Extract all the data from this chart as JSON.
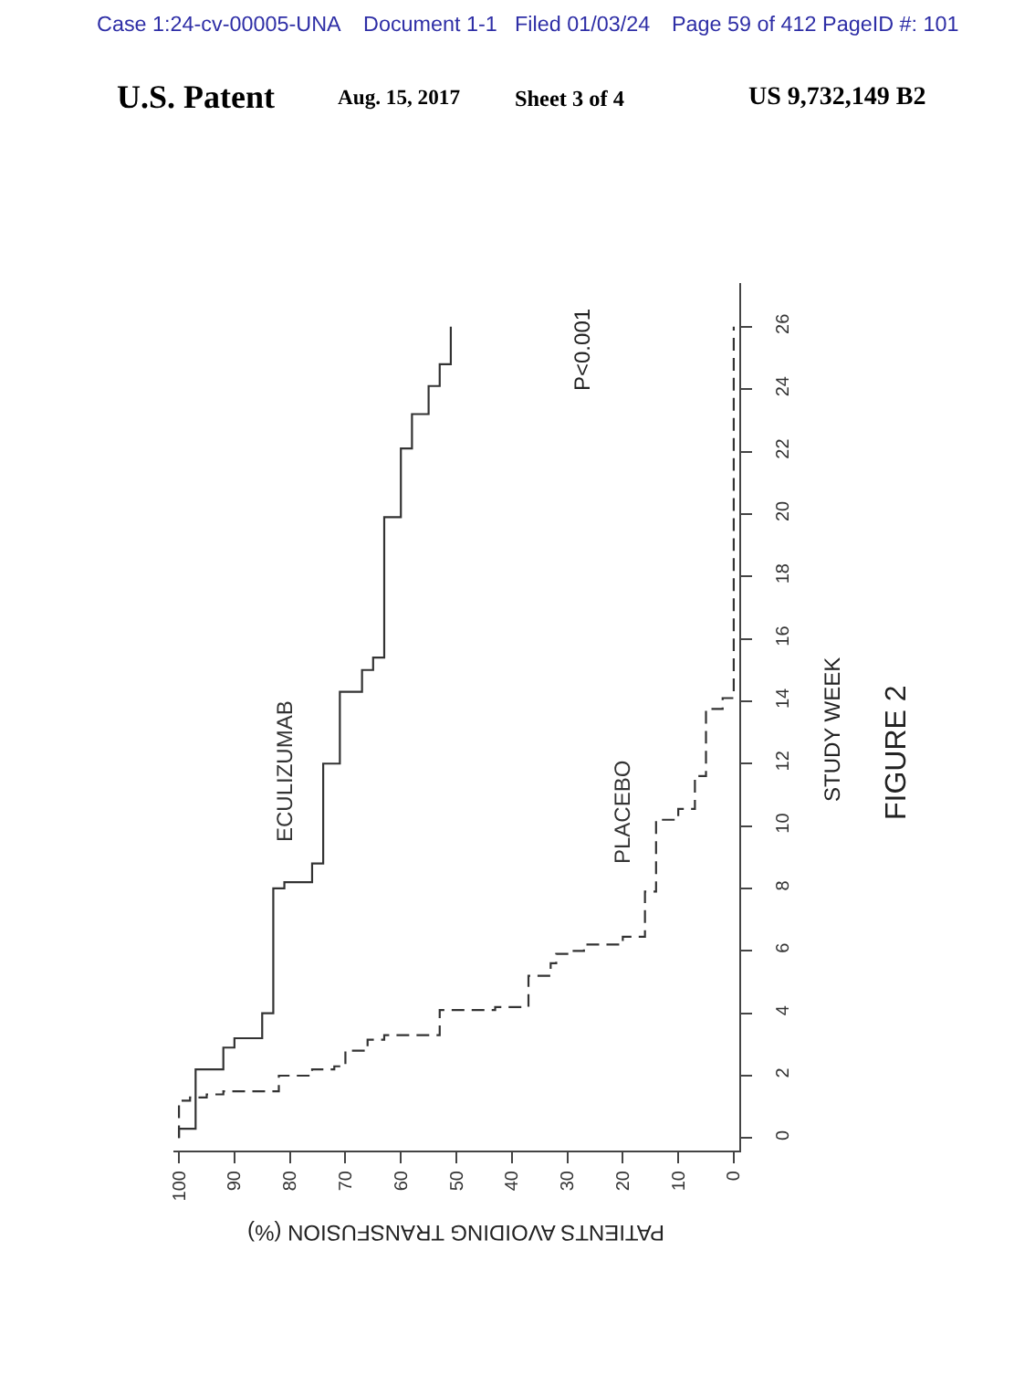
{
  "chart_data": {
    "type": "line",
    "xlabel": "PATIENTS AVOIDING TRANSFUSION (%)",
    "ylabel": "STUDY WEEK",
    "annotations": [
      "Case 1:24-cv-00005-UNA",
      "Document 1-1",
      "Filed 01/03/24",
      "Page 59 of 412 PageID #: 101",
      "U.S. Patent",
      "Aug. 15, 2017",
      "Sheet 3 of 4",
      "US 9,732,149 B2",
      "P<0.001",
      "FIGURE 2"
    ],
    "series": [
      {
        "name": "ECULIZUMAB",
        "color": "#333333",
        "line_style": "solid",
        "x": [
          100,
          100,
          97,
          97,
          92,
          92,
          90,
          90,
          85,
          85,
          83,
          83,
          81,
          81,
          76,
          76,
          74,
          74,
          71,
          71,
          67,
          67,
          65,
          65,
          63,
          63,
          60,
          60,
          58,
          58,
          55,
          55,
          53,
          53,
          51,
          51
        ],
        "values": [
          0,
          0.3,
          0.3,
          2.2,
          2.2,
          2.9,
          2.9,
          3.2,
          3.2,
          4.0,
          4.0,
          8.0,
          8.0,
          8.2,
          8.2,
          8.8,
          8.8,
          12.0,
          12.0,
          14.3,
          14.3,
          15.0,
          15.0,
          15.4,
          15.4,
          19.9,
          19.9,
          22.1,
          22.1,
          23.2,
          23.2,
          24.1,
          24.1,
          24.8,
          24.8,
          26.0
        ]
      },
      {
        "name": "PLACEBO",
        "color": "#333333",
        "line_style": "dashed",
        "x": [
          100,
          100,
          98,
          98,
          95,
          95,
          92,
          92,
          82,
          82,
          76,
          76,
          72,
          72,
          70,
          70,
          66,
          66,
          63,
          63,
          53,
          53,
          43,
          43,
          37,
          37,
          33,
          33,
          32,
          32,
          30,
          30,
          27,
          27,
          20,
          20,
          16,
          16,
          14,
          14,
          10,
          10,
          7,
          7,
          5,
          5,
          2,
          2,
          0,
          0
        ],
        "values": [
          0,
          1.2,
          1.2,
          1.3,
          1.3,
          1.4,
          1.4,
          1.5,
          1.5,
          2.0,
          2.0,
          2.2,
          2.2,
          2.3,
          2.3,
          2.8,
          2.8,
          3.15,
          3.15,
          3.3,
          3.3,
          4.1,
          4.1,
          4.2,
          4.2,
          5.2,
          5.2,
          5.6,
          5.6,
          5.9,
          5.9,
          6.0,
          6.0,
          6.2,
          6.2,
          6.45,
          6.45,
          7.9,
          7.9,
          10.2,
          10.2,
          10.55,
          10.55,
          11.6,
          11.6,
          13.75,
          13.75,
          14.1,
          14.1,
          26.0
        ]
      }
    ],
    "xlim": [
      101,
      -1
    ],
    "xticks": [
      100,
      90,
      80,
      70,
      60,
      50,
      40,
      30,
      20,
      10,
      0
    ],
    "ylim": [
      -0.4,
      27.4
    ],
    "yticks": [
      0,
      2,
      4,
      6,
      8,
      10,
      12,
      14,
      16,
      18,
      20,
      22,
      24,
      26
    ]
  }
}
